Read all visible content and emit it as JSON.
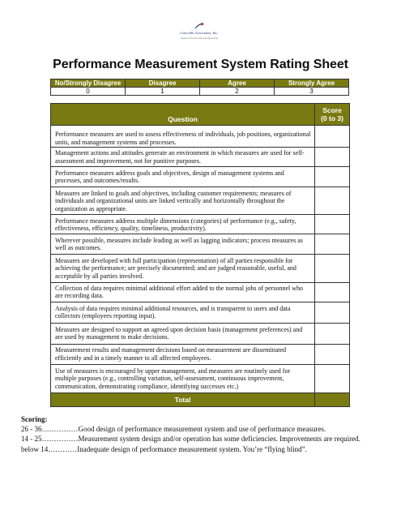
{
  "logo": {
    "name": "Gotcredit Associates, Inc.",
    "tagline": "Systems Performance Engineering"
  },
  "title": "Performance Measurement System Rating Sheet",
  "scale": {
    "labels": [
      "No/Strongly Disagree",
      "Disagree",
      "Agree",
      "Strongly Agree"
    ],
    "values": [
      "0",
      "1",
      "2",
      "3"
    ]
  },
  "table": {
    "question_header": "Question",
    "score_header_line1": "Score",
    "score_header_line2": "(0 to 3)",
    "questions": [
      "Performance measures are used to assess effectiveness of individuals, job positions, organizational units, and management systems and processes.",
      "Management actions and attitudes generate an environment in which measures are used for self-assessment and improvement, not for punitive purposes.",
      "Performance measures address goals and objectives, design of management systems and processes, and outcomes/results.",
      "Measures are linked to goals and objectives, including customer requirements; measures of individuals and organizational units are linked vertically and horizontally throughout the organization as appropriate.",
      "Performance measures address multiple dimensions (categories) of performance (e.g., safety, effectiveness, efficiency, quality, timeliness, productivity).",
      "Wherever possible, measures include leading as well as lagging indicators; process measures as well as outcomes.",
      "Measures are developed with full participation (representation) of all parties responsible for achieving the performance; are precisely documented; and are judged reasonable, useful, and acceptable by all parties involved.",
      "Collection of data requires minimal additional effort added to the normal jobs of personnel who are recording data.",
      "Analysis of data requires minimal additional resources, and is transparent to users and data collectors (employees reporting input).",
      "Measures are designed to support an agreed upon decision basis (management preferences) and are used by management to make decisions.",
      "Measurement results and management decisions based on measurement are disseminated efficiently and in a timely manner to all affected employees.",
      "Use of measures is encouraged by upper management, and measures are routinely used for multiple purposes (e.g., controlling variation, self-assessment, continuous improvement, communication, demonstrating compliance, identifying successes etc.)"
    ],
    "total_label": "Total"
  },
  "scoring": {
    "heading": "Scoring:",
    "lines": [
      {
        "range": "26 - 36……………",
        "text": "Good design of performance measurement system and use of performance measures."
      },
      {
        "range": "14 - 25……………",
        "text": "Measurement system design and/or operation has some deficiencies.  Improvements are required."
      },
      {
        "range": "below 14…………",
        "text": "Inadequate design of performance measurement system.  You’re “flying blind”."
      }
    ]
  }
}
